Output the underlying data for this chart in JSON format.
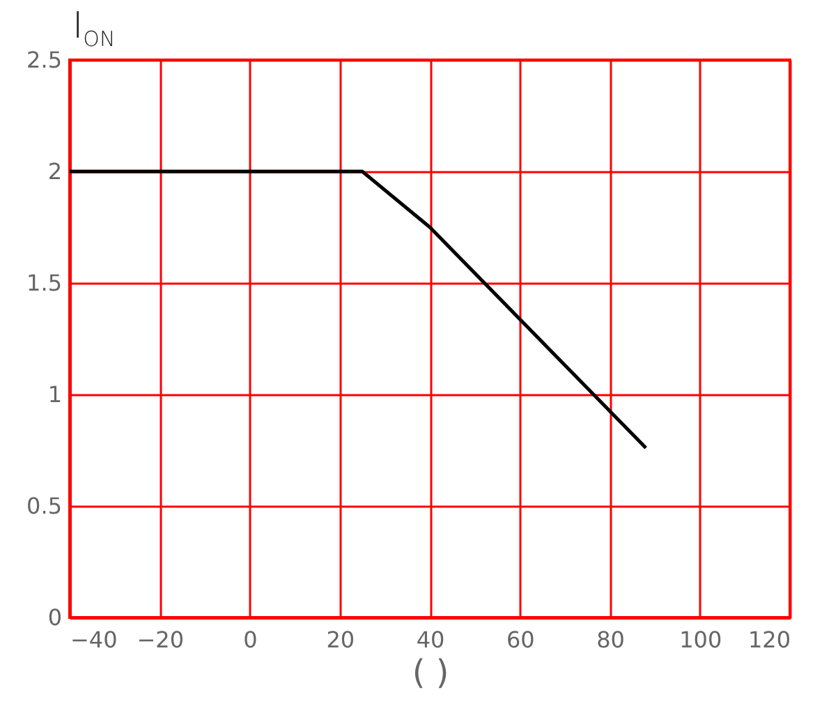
{
  "chart_data": {
    "type": "line",
    "title": "I$_{ON}$",
    "xlabel": "( )",
    "x": [
      -40,
      25,
      40,
      88
    ],
    "series": [
      {
        "color": "#000000",
        "values": [
          2,
          2,
          1.75,
          0.76
        ]
      }
    ],
    "xlim": [
      -40,
      120
    ],
    "xticks": [
      -40,
      -20,
      0,
      20,
      40,
      60,
      80,
      100,
      120
    ],
    "ylim": [
      0,
      2.5
    ],
    "yticks": [
      0,
      0.5,
      1,
      1.5,
      2,
      2.5
    ],
    "grid": true,
    "legend": false,
    "marker": "none",
    "line_style": "solid"
  }
}
